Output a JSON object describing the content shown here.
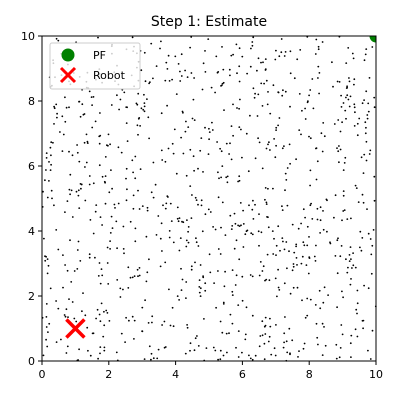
{
  "chart_data": {
    "type": "scatter",
    "title": "Step 1: Estimate",
    "xlabel": "",
    "ylabel": "",
    "xlim": [
      0,
      10
    ],
    "ylim": [
      0,
      10
    ],
    "xticks": [
      "0",
      "2",
      "4",
      "6",
      "8",
      "10"
    ],
    "yticks": [
      "0",
      "2",
      "4",
      "6",
      "8",
      "10"
    ],
    "grid": false,
    "legend_position": "top-left",
    "particles": {
      "count": 1000,
      "color": "#000000",
      "distribution": "uniform over [0,10] x [0,10]"
    },
    "series": [
      {
        "name": "PF",
        "marker": "circle",
        "color": "#008000",
        "points": [
          [
            10,
            10
          ]
        ]
      },
      {
        "name": "Robot",
        "marker": "x",
        "color": "#ff0000",
        "points": [
          [
            1,
            1
          ]
        ]
      }
    ]
  }
}
